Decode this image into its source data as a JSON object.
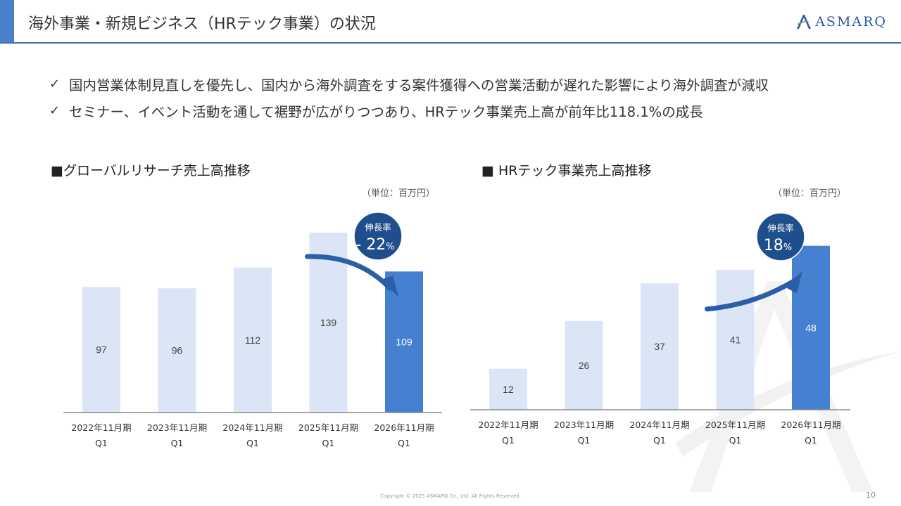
{
  "header": {
    "title": "海外事業・新規ビジネス（HRテック事業）の状況",
    "logo_text": "ASMARQ",
    "logo_icon": "asmarq-a-logo-icon"
  },
  "bullets": [
    "国内営業体制見直しを優先し、国内から海外調査をする案件獲得への営業活動が遅れた影響により海外調査が減収",
    "セミナー、イベント活動を通して裾野が広がりつつあり、HRテック事業売上高が前年比118.1%の成長"
  ],
  "chart_data": [
    {
      "type": "bar",
      "title": "■グローバルリサーチ売上高推移",
      "unit": "（単位：百万円）",
      "categories": [
        "2022年11月期",
        "2023年11月期",
        "2024年11月期",
        "2025年11月期",
        "2026年11月期"
      ],
      "category_sub": [
        "Q1",
        "Q1",
        "Q1",
        "Q1",
        "Q1"
      ],
      "values": [
        97,
        96,
        112,
        139,
        109
      ],
      "value_labels": [
        "97",
        "96",
        "112",
        "139",
        "109"
      ],
      "highlight_index": 4,
      "ylim": [
        0,
        145
      ],
      "callout": {
        "label": "伸長率",
        "value": "- 22",
        "suffix": "%"
      },
      "colors": {
        "bar": "#dbe5f5",
        "highlight": "#4680d0",
        "circle": "#1f4e8c"
      }
    },
    {
      "type": "bar",
      "title": "■ HRテック事業売上高推移",
      "unit": "（単位：百万円）",
      "categories": [
        "2022年11月期",
        "2023年11月期",
        "2024年11月期",
        "2025年11月期",
        "2026年11月期"
      ],
      "category_sub": [
        "Q1",
        "Q1",
        "Q1",
        "Q1",
        "Q1"
      ],
      "values": [
        12,
        26,
        37,
        41,
        48
      ],
      "value_labels": [
        "12",
        "26",
        "37",
        "41",
        "48"
      ],
      "highlight_index": 4,
      "ylim": [
        0,
        50
      ],
      "callout": {
        "label": "伸長率",
        "value": "18",
        "suffix": "%"
      },
      "colors": {
        "bar": "#dbe5f5",
        "highlight": "#4680d0",
        "circle": "#1f4e8c"
      }
    }
  ],
  "footer": {
    "copyright": "Copyright © 2025 ASMARQ Co., Ltd. All Rights Reserved.",
    "page": "10"
  }
}
